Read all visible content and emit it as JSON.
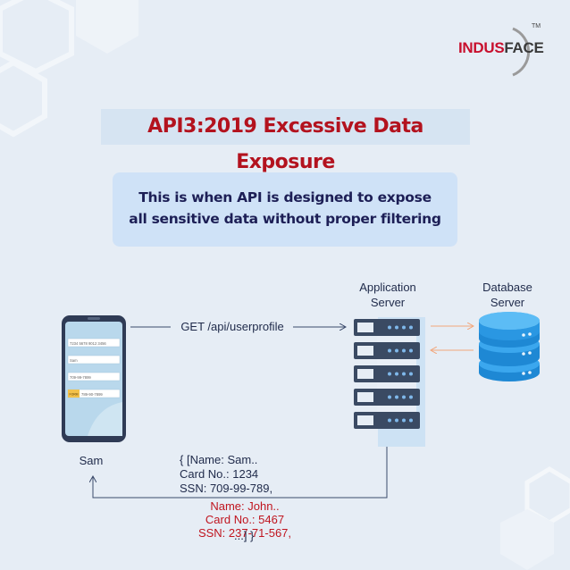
{
  "logo": {
    "text_red": "INDUS",
    "text_dark": "FACE",
    "tm": "TM"
  },
  "title": "API3:2019 Excessive Data Exposure",
  "description": {
    "line1": "This is when API is designed to expose",
    "line2": "all sensitive data without proper filtering"
  },
  "labels": {
    "user": "Sam",
    "app_server_l1": "Application",
    "app_server_l2": "Server",
    "db_server_l1": "Database",
    "db_server_l2": "Server",
    "request": "GET /api/userprofile"
  },
  "response": {
    "l1": "{  [Name: Sam..",
    "l2": "Card No.: 1234",
    "l3": "SSN: 709-99-789,",
    "r1": "Name: John..",
    "r2": "Card No.: 5467",
    "r3": "SSN: 237-71-567,",
    "r4": "...]  }"
  },
  "phone": {
    "fields": [
      "7234 5678 9012 3456",
      "Sam",
      "709-99-7899",
      "789-90-7899"
    ],
    "badge": "FORM"
  },
  "colors": {
    "background": "#e6edf5",
    "title_red": "#b3121e",
    "navy": "#1d1f56",
    "server": "#3a4a63",
    "db_blue": "#2b9be6",
    "arrow_orange": "#f2b08a"
  }
}
